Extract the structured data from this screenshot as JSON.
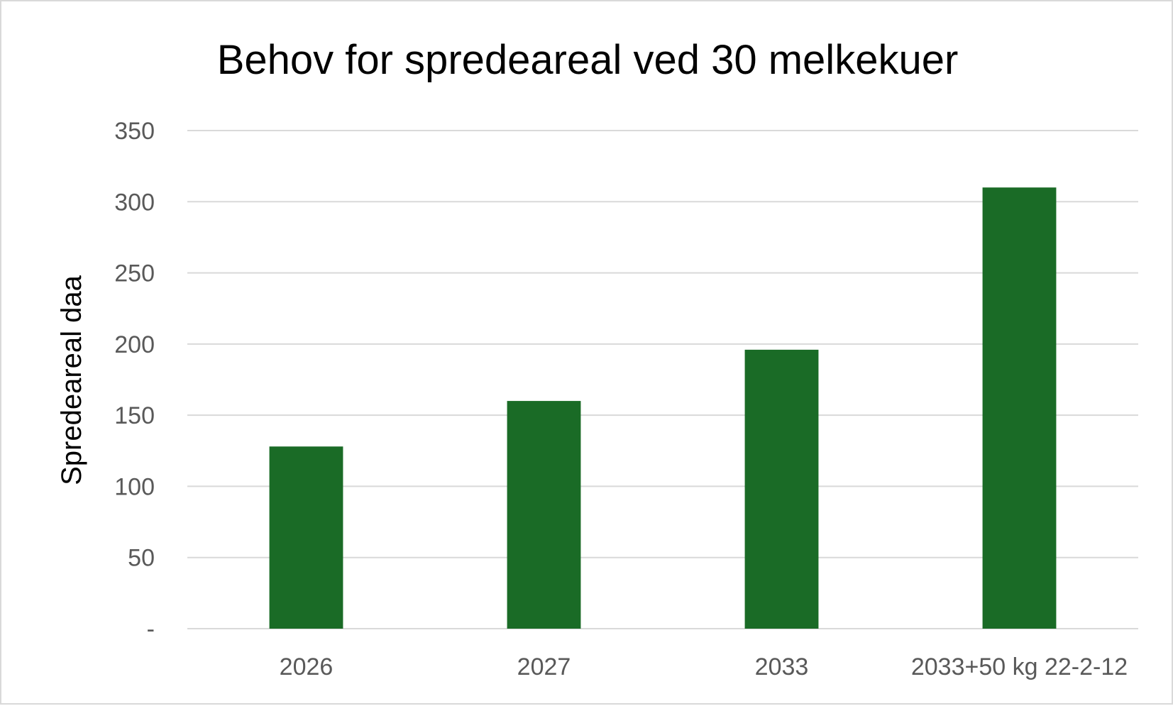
{
  "chart_data": {
    "type": "bar",
    "title": "Behov for spredeareal ved 30 melkekuer",
    "ylabel": "Spredeareal daa",
    "xlabel": "",
    "categories": [
      "2026",
      "2027",
      "2033",
      "2033+50 kg 22-2-12"
    ],
    "values": [
      128,
      160,
      196,
      310
    ],
    "ylim": [
      0,
      350
    ],
    "yticks": [
      0,
      50,
      100,
      150,
      200,
      250,
      300,
      350
    ],
    "ytick_labels": [
      "-",
      "50",
      "100",
      "150",
      "200",
      "250",
      "300",
      "350"
    ],
    "grid": true,
    "legend": "none",
    "bar_color": "#1a6b26"
  }
}
